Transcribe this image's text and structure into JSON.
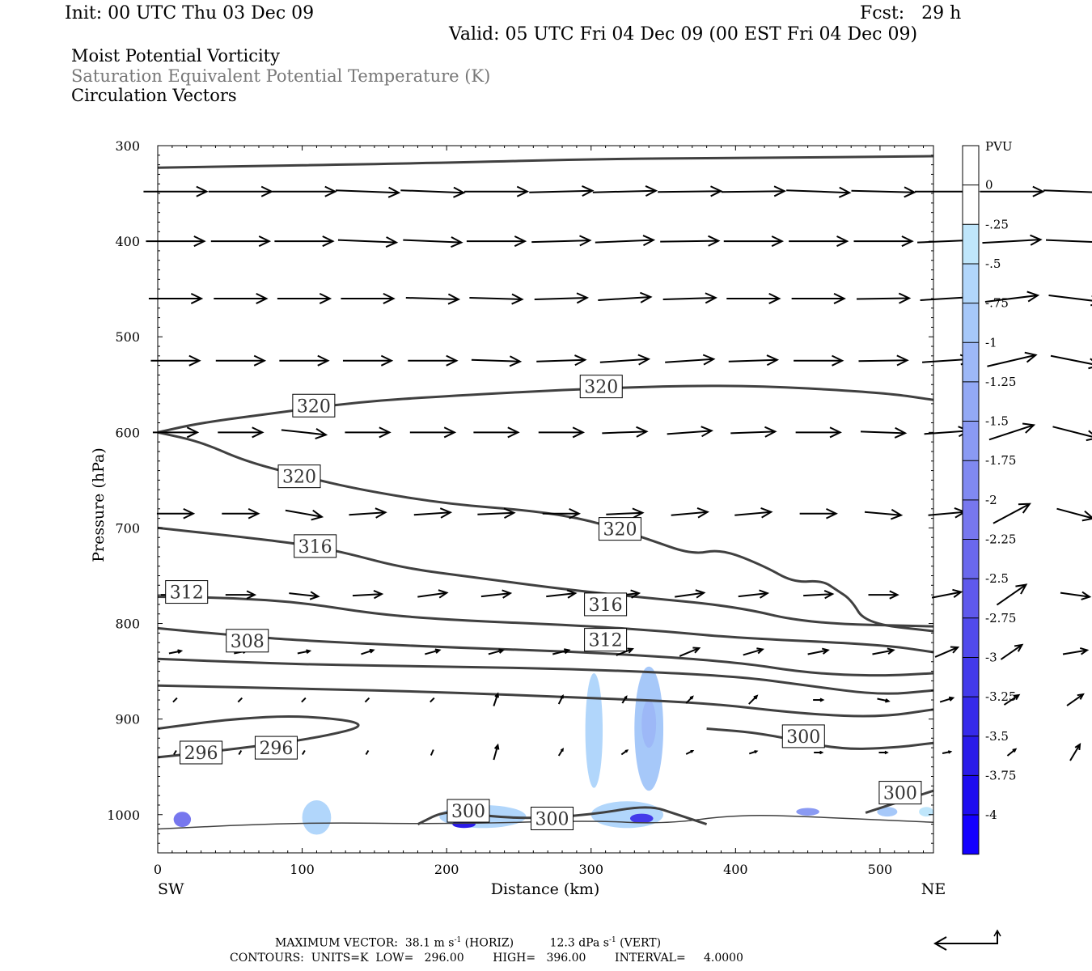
{
  "header": {
    "init": "Init: 00 UTC Thu 03 Dec 09",
    "fcst": "Fcst:   29 h",
    "valid": "Valid: 05 UTC Fri 04 Dec 09 (00 EST Fri 04 Dec 09)",
    "field1": "Moist Potential Vorticity",
    "field2": "Saturation Equivalent Potential Temperature (K)",
    "field3": "Circulation Vectors"
  },
  "footer": {
    "max_vector_label": "MAXIMUM VECTOR:",
    "horiz_value": "38.1 m s",
    "horiz_suffix": " (HORIZ)",
    "vert_value": "12.3 dPa s",
    "vert_suffix": " (VERT)",
    "exponent": "-1",
    "contours_line": "CONTOURS:  UNITS=K  LOW=   296.00        HIGH=   396.00        INTERVAL=     4.0000"
  },
  "colors": {
    "contour": "#404040",
    "vector": "#000000",
    "colorbar_shades": [
      "#ffffff",
      "#ffffff",
      "#bfe6fb",
      "#b1d6fb",
      "#a6c8f9",
      "#9db8f7",
      "#93a9f5",
      "#8a9af3",
      "#8089f1",
      "#7777ee",
      "#6a68ed",
      "#5f59ec",
      "#514aeb",
      "#433aea",
      "#362aea",
      "#2a1be9",
      "#1d0cf0",
      "#1400ff"
    ]
  },
  "chart_data": {
    "type": "cross-section",
    "xlabel": "Distance (km)",
    "ylabel": "Pressure (hPa)",
    "xlim": [
      0,
      537
    ],
    "ylim": [
      1040,
      300
    ],
    "x_ticks": [
      "0",
      "100",
      "200",
      "300",
      "400",
      "500"
    ],
    "y_ticks": [
      "300",
      "400",
      "500",
      "600",
      "700",
      "800",
      "900",
      "1000"
    ],
    "x_left_label": "SW",
    "x_right_label": "NE",
    "colorbar": {
      "title": "PVU",
      "tick_labels": [
        "0",
        "-.25",
        "-.5",
        "-.75",
        "-1",
        "-1.25",
        "-1.5",
        "-1.75",
        "-2",
        "-2.25",
        "-2.5",
        "-2.75",
        "-3",
        "-3.25",
        "-3.5",
        "-3.75",
        "-4"
      ]
    },
    "contours": [
      {
        "points": [
          [
            0,
            323
          ],
          [
            200,
            318
          ],
          [
            300,
            314
          ],
          [
            400,
            313
          ],
          [
            537,
            311
          ]
        ]
      },
      {
        "points": [
          [
            0,
            600
          ],
          [
            30,
            590
          ],
          [
            80,
            580
          ],
          [
            140,
            568
          ],
          [
            200,
            562
          ],
          [
            300,
            554
          ],
          [
            400,
            550
          ],
          [
            500,
            558
          ],
          [
            537,
            566
          ]
        ]
      },
      {
        "points": [
          [
            0,
            600
          ],
          [
            30,
            610
          ],
          [
            60,
            630
          ],
          [
            100,
            646
          ],
          [
            140,
            660
          ],
          [
            200,
            675
          ],
          [
            260,
            682
          ],
          [
            300,
            692
          ],
          [
            340,
            712
          ],
          [
            370,
            728
          ],
          [
            390,
            722
          ],
          [
            420,
            740
          ],
          [
            440,
            757
          ],
          [
            460,
            755
          ],
          [
            470,
            765
          ],
          [
            480,
            775
          ],
          [
            490,
            800
          ],
          [
            537,
            808
          ]
        ]
      },
      {
        "points": [
          [
            0,
            700
          ],
          [
            50,
            708
          ],
          [
            100,
            717
          ],
          [
            130,
            726
          ],
          [
            170,
            742
          ],
          [
            220,
            752
          ],
          [
            280,
            764
          ],
          [
            330,
            772
          ],
          [
            400,
            782
          ],
          [
            450,
            800
          ],
          [
            537,
            803
          ]
        ]
      },
      {
        "points": [
          [
            0,
            772
          ],
          [
            50,
            773
          ],
          [
            100,
            778
          ],
          [
            150,
            790
          ],
          [
            200,
            796
          ],
          [
            260,
            800
          ],
          [
            300,
            803
          ],
          [
            350,
            808
          ],
          [
            400,
            815
          ],
          [
            500,
            822
          ],
          [
            537,
            830
          ]
        ]
      },
      {
        "points": [
          [
            0,
            805
          ],
          [
            50,
            812
          ],
          [
            100,
            818
          ],
          [
            200,
            825
          ],
          [
            300,
            830
          ],
          [
            400,
            840
          ],
          [
            450,
            852
          ],
          [
            500,
            855
          ],
          [
            537,
            852
          ]
        ]
      },
      {
        "points": [
          [
            0,
            837
          ],
          [
            100,
            843
          ],
          [
            200,
            845
          ],
          [
            300,
            848
          ],
          [
            400,
            855
          ],
          [
            450,
            865
          ],
          [
            500,
            875
          ],
          [
            537,
            870
          ]
        ]
      },
      {
        "points": [
          [
            0,
            865
          ],
          [
            100,
            868
          ],
          [
            200,
            872
          ],
          [
            300,
            878
          ],
          [
            380,
            883
          ],
          [
            450,
            895
          ],
          [
            500,
            898
          ],
          [
            537,
            890
          ]
        ]
      },
      {
        "points": [
          [
            0,
            910
          ],
          [
            50,
            900
          ],
          [
            100,
            896
          ],
          [
            150,
            905
          ],
          [
            110,
            920
          ],
          [
            50,
            932
          ],
          [
            0,
            940
          ]
        ]
      },
      {
        "points": [
          [
            380,
            910
          ],
          [
            420,
            915
          ],
          [
            470,
            932
          ],
          [
            510,
            930
          ],
          [
            537,
            925
          ]
        ]
      },
      {
        "points": [
          [
            490,
            998
          ],
          [
            537,
            975
          ]
        ]
      },
      {
        "points": [
          [
            180,
            1010
          ],
          [
            200,
            995
          ],
          [
            230,
            1002
          ],
          [
            260,
            1004
          ],
          [
            300,
            1000
          ],
          [
            340,
            990
          ],
          [
            360,
            1000
          ],
          [
            380,
            1010
          ]
        ]
      },
      {
        "points": [
          [
            0,
            1015
          ],
          [
            100,
            1008
          ],
          [
            200,
            1010
          ],
          [
            300,
            1006
          ],
          [
            350,
            1010
          ],
          [
            400,
            1000
          ],
          [
            450,
            1002
          ],
          [
            537,
            1008
          ]
        ]
      }
    ],
    "contour_labels": [
      {
        "text": "320",
        "x": 108,
        "y": 572
      },
      {
        "text": "320",
        "x": 307,
        "y": 552
      },
      {
        "text": "320",
        "x": 98,
        "y": 646
      },
      {
        "text": "320",
        "x": 320,
        "y": 701
      },
      {
        "text": "316",
        "x": 109,
        "y": 719
      },
      {
        "text": "316",
        "x": 310,
        "y": 780
      },
      {
        "text": "312",
        "x": 20,
        "y": 767
      },
      {
        "text": "312",
        "x": 310,
        "y": 817
      },
      {
        "text": "308",
        "x": 62,
        "y": 818
      },
      {
        "text": "296",
        "x": 30,
        "y": 935
      },
      {
        "text": "296",
        "x": 82,
        "y": 930
      },
      {
        "text": "300",
        "x": 447,
        "y": 918
      },
      {
        "text": "300",
        "x": 514,
        "y": 977
      },
      {
        "text": "300",
        "x": 215,
        "y": 996
      },
      {
        "text": "300",
        "x": 273,
        "y": 1004
      }
    ],
    "pv_blobs": [
      {
        "x": 302,
        "y": 912,
        "rx": 6,
        "ry": 60,
        "level": 0.5
      },
      {
        "x": 340,
        "y": 910,
        "rx": 10,
        "ry": 65,
        "level": 0.75
      },
      {
        "x": 340,
        "y": 905,
        "rx": 5,
        "ry": 25,
        "level": 1.0
      },
      {
        "x": 110,
        "y": 1003,
        "rx": 10,
        "ry": 18,
        "level": 0.5
      },
      {
        "x": 225,
        "y": 1002,
        "rx": 30,
        "ry": 12,
        "level": 0.5
      },
      {
        "x": 212,
        "y": 1010,
        "rx": 8,
        "ry": 4,
        "level": 3.5
      },
      {
        "x": 325,
        "y": 1000,
        "rx": 25,
        "ry": 14,
        "level": 0.5
      },
      {
        "x": 335,
        "y": 1004,
        "rx": 8,
        "ry": 5,
        "level": 3.0
      },
      {
        "x": 17,
        "y": 1005,
        "rx": 6,
        "ry": 8,
        "level": 2.0
      },
      {
        "x": 450,
        "y": 997,
        "rx": 8,
        "ry": 4,
        "level": 1.5
      },
      {
        "x": 505,
        "y": 997,
        "rx": 7,
        "ry": 5,
        "level": 0.75
      },
      {
        "x": 532,
        "y": 997,
        "rx": 5,
        "ry": 5,
        "level": 0.25
      }
    ],
    "vector_levels": [
      {
        "p": 348,
        "u": [
          0.78,
          0.78,
          0.78,
          0.78,
          0.78,
          0.78,
          0.78,
          0.78,
          0.78,
          0.78,
          0.78,
          0.78,
          0.78,
          0.78,
          0.78,
          0.78,
          0.78
        ],
        "w": [
          0,
          0,
          0,
          0.03,
          0.03,
          0,
          -0.02,
          -0.02,
          -0.01,
          -0.01,
          0.03,
          0.02,
          0,
          0,
          0.03,
          0.03,
          -0.05
        ]
      },
      {
        "p": 400,
        "u": [
          0.72,
          0.72,
          0.72,
          0.72,
          0.72,
          0.72,
          0.72,
          0.72,
          0.72,
          0.72,
          0.72,
          0.72,
          0.72,
          0.72,
          0.72,
          0.72,
          0.72
        ],
        "w": [
          0,
          0,
          0,
          0.03,
          0.03,
          0,
          -0.02,
          -0.03,
          -0.01,
          0,
          0,
          0,
          -0.03,
          -0.04,
          0.03,
          0.04,
          -0.08
        ]
      },
      {
        "p": 460,
        "u": [
          0.65,
          0.65,
          0.65,
          0.65,
          0.65,
          0.65,
          0.65,
          0.65,
          0.65,
          0.65,
          0.65,
          0.65,
          0.65,
          0.65,
          0.65,
          0.65,
          0.65
        ],
        "w": [
          0,
          0,
          0,
          0,
          0.02,
          0.02,
          -0.02,
          -0.04,
          -0.02,
          0,
          0,
          -0.01,
          -0.04,
          -0.08,
          0.08,
          0.06,
          -0.06
        ]
      },
      {
        "p": 525,
        "u": [
          0.6,
          0.6,
          0.6,
          0.6,
          0.6,
          0.6,
          0.6,
          0.6,
          0.6,
          0.6,
          0.6,
          0.6,
          0.6,
          0.6,
          0.6,
          0.6,
          0.6
        ],
        "w": [
          0,
          0,
          0,
          0,
          0,
          0.02,
          -0.02,
          -0.04,
          -0.04,
          -0.02,
          0,
          -0.01,
          -0.04,
          -0.14,
          0.12,
          0.1,
          -0.06
        ]
      },
      {
        "p": 600,
        "u": [
          0.55,
          0.55,
          0.55,
          0.55,
          0.55,
          0.55,
          0.55,
          0.55,
          0.55,
          0.55,
          0.55,
          0.55,
          0.55,
          0.55,
          0.55,
          0.55,
          0.55
        ],
        "w": [
          0,
          0,
          0.06,
          0,
          0,
          0,
          0,
          -0.02,
          -0.04,
          -0.02,
          0,
          0.02,
          -0.04,
          -0.18,
          0.14,
          0.08,
          -0.05
        ]
      },
      {
        "p": 685,
        "u": [
          0.45,
          0.45,
          0.45,
          0.45,
          0.45,
          0.45,
          0.45,
          0.45,
          0.45,
          0.45,
          0.45,
          0.45,
          0.45,
          0.45,
          0.45,
          0.45,
          0.45
        ],
        "w": [
          0,
          0,
          0.08,
          -0.03,
          -0.03,
          -0.02,
          0,
          -0.02,
          -0.04,
          -0.04,
          0,
          0.04,
          -0.04,
          -0.24,
          0.12,
          0,
          0
        ]
      },
      {
        "p": 770,
        "u": [
          0.36,
          0.36,
          0.36,
          0.36,
          0.36,
          0.36,
          0.36,
          0.36,
          0.36,
          0.36,
          0.36,
          0.36,
          0.36,
          0.36,
          0.36,
          0.36,
          0.36
        ],
        "w": [
          0,
          0,
          0.04,
          -0.02,
          -0.05,
          -0.04,
          -0.04,
          -0.04,
          -0.05,
          -0.04,
          -0.02,
          0,
          -0.07,
          -0.25,
          0.05,
          0.04,
          0.08
        ]
      },
      {
        "p": 830,
        "u": [
          0.15,
          0.15,
          0.15,
          0.15,
          0.18,
          0.18,
          0.2,
          0.2,
          0.24,
          0.24,
          0.25,
          0.26,
          0.28,
          0.26,
          0.3,
          0.3,
          0.32
        ],
        "w": [
          -0.03,
          -0.03,
          -0.03,
          -0.05,
          -0.05,
          -0.05,
          -0.05,
          -0.08,
          -0.1,
          -0.07,
          -0.05,
          -0.05,
          -0.12,
          -0.18,
          -0.05,
          0.15,
          0.2
        ]
      },
      {
        "p": 880,
        "u": [
          0.05,
          0.05,
          0.05,
          0.05,
          0.05,
          0.05,
          0.05,
          0.05,
          0.08,
          0.1,
          0.12,
          0.14,
          0.16,
          0.18,
          0.2,
          0.22,
          0.22
        ],
        "w": [
          -0.05,
          -0.05,
          -0.05,
          -0.05,
          -0.05,
          -0.15,
          -0.1,
          -0.08,
          -0.08,
          -0.1,
          0,
          0.03,
          -0.05,
          -0.12,
          -0.14,
          0.08,
          0.1
        ]
      },
      {
        "p": 935,
        "u": [
          0.03,
          0.03,
          0.03,
          0.03,
          0.03,
          0.05,
          0.05,
          0.07,
          0.08,
          0.09,
          0.1,
          0.1,
          0.1,
          0.1,
          0.12,
          0.14,
          0.15
        ],
        "w": [
          -0.05,
          -0.05,
          -0.05,
          -0.05,
          -0.07,
          -0.18,
          -0.08,
          -0.05,
          -0.04,
          -0.03,
          0,
          0,
          -0.02,
          -0.08,
          -0.2,
          -0.12,
          0
        ]
      }
    ],
    "vector_x_km": [
      12,
      57,
      101,
      145,
      190,
      234,
      279,
      323,
      368,
      412,
      457,
      502,
      546,
      591,
      635,
      680,
      726
    ]
  }
}
